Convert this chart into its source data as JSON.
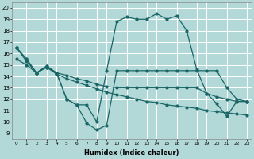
{
  "xlabel": "Humidex (Indice chaleur)",
  "xlim": [
    -0.5,
    23.5
  ],
  "ylim": [
    8.5,
    20.5
  ],
  "xticks": [
    0,
    1,
    2,
    3,
    4,
    5,
    6,
    7,
    8,
    9,
    10,
    11,
    12,
    13,
    14,
    15,
    16,
    17,
    18,
    19,
    20,
    21,
    22,
    23
  ],
  "yticks": [
    9,
    10,
    11,
    12,
    13,
    14,
    15,
    16,
    17,
    18,
    19,
    20
  ],
  "background_color": "#b2d8d8",
  "grid_color": "#ffffff",
  "line_color": "#1a6666",
  "line1_x": [
    0,
    1,
    2,
    3,
    4,
    5,
    6,
    7,
    8,
    9,
    10,
    11,
    12,
    13,
    14,
    15,
    16,
    17,
    18,
    19,
    20,
    21,
    22,
    23
  ],
  "line1_y": [
    16.5,
    15.5,
    14.3,
    14.9,
    14.3,
    14.1,
    13.8,
    13.6,
    13.3,
    13.1,
    13.0,
    13.0,
    13.0,
    13.0,
    13.0,
    13.0,
    13.0,
    13.0,
    13.0,
    12.5,
    12.2,
    12.0,
    11.8,
    11.8
  ],
  "line2_x": [
    0,
    1,
    2,
    3,
    4,
    5,
    6,
    7,
    8,
    9,
    10,
    11,
    12,
    13,
    14,
    15,
    16,
    17,
    18,
    19,
    20,
    21,
    22,
    23
  ],
  "line2_y": [
    15.5,
    15.0,
    14.3,
    14.8,
    14.2,
    13.8,
    13.5,
    13.2,
    12.9,
    12.6,
    12.4,
    12.2,
    12.0,
    11.8,
    11.7,
    11.5,
    11.4,
    11.3,
    11.2,
    11.0,
    10.9,
    10.8,
    10.7,
    10.6
  ],
  "line3_x": [
    0,
    1,
    2,
    3,
    4,
    5,
    6,
    7,
    8,
    9,
    10,
    11,
    12,
    13,
    14,
    15,
    16,
    17,
    18,
    19,
    20,
    21,
    22,
    23
  ],
  "line3_y": [
    16.5,
    15.3,
    14.3,
    14.9,
    14.3,
    12.0,
    11.5,
    11.5,
    10.0,
    14.5,
    18.8,
    19.2,
    19.0,
    19.0,
    19.5,
    19.0,
    19.3,
    18.0,
    14.6,
    12.5,
    11.6,
    10.5,
    11.8,
    11.8
  ],
  "line4_x": [
    0,
    1,
    2,
    3,
    4,
    5,
    6,
    7,
    8,
    9,
    10,
    11,
    12,
    13,
    14,
    15,
    16,
    17,
    18,
    19,
    20,
    21,
    22,
    23
  ],
  "line4_y": [
    16.5,
    15.5,
    14.3,
    14.8,
    14.3,
    12.0,
    11.5,
    9.9,
    9.3,
    9.7,
    14.5,
    14.5,
    14.5,
    14.5,
    14.5,
    14.5,
    14.5,
    14.5,
    14.5,
    14.5,
    14.5,
    13.0,
    12.0,
    11.8
  ]
}
